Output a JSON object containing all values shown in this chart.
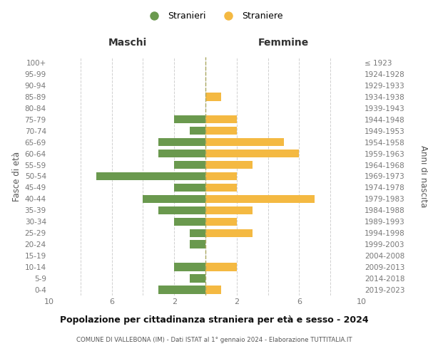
{
  "age_groups": [
    "0-4",
    "5-9",
    "10-14",
    "15-19",
    "20-24",
    "25-29",
    "30-34",
    "35-39",
    "40-44",
    "45-49",
    "50-54",
    "55-59",
    "60-64",
    "65-69",
    "70-74",
    "75-79",
    "80-84",
    "85-89",
    "90-94",
    "95-99",
    "100+"
  ],
  "birth_years": [
    "2019-2023",
    "2014-2018",
    "2009-2013",
    "2004-2008",
    "1999-2003",
    "1994-1998",
    "1989-1993",
    "1984-1988",
    "1979-1983",
    "1974-1978",
    "1969-1973",
    "1964-1968",
    "1959-1963",
    "1954-1958",
    "1949-1953",
    "1944-1948",
    "1939-1943",
    "1934-1938",
    "1929-1933",
    "1924-1928",
    "≤ 1923"
  ],
  "maschi": [
    3,
    1,
    2,
    0,
    1,
    1,
    2,
    3,
    4,
    2,
    7,
    2,
    3,
    3,
    1,
    2,
    0,
    0,
    0,
    0,
    0
  ],
  "femmine": [
    1,
    0,
    2,
    0,
    0,
    3,
    2,
    3,
    7,
    2,
    2,
    3,
    6,
    5,
    2,
    2,
    0,
    1,
    0,
    0,
    0
  ],
  "maschi_color": "#6a994e",
  "femmine_color": "#f4b942",
  "title": "Popolazione per cittadinanza straniera per età e sesso - 2024",
  "subtitle": "COMUNE DI VALLEBONA (IM) - Dati ISTAT al 1° gennaio 2024 - Elaborazione TUTTITALIA.IT",
  "xlabel_left": "Maschi",
  "xlabel_right": "Femmine",
  "ylabel": "Fasce di età",
  "ylabel_right": "Anni di nascita",
  "legend_maschi": "Stranieri",
  "legend_femmine": "Straniere",
  "xlim": 10,
  "background_color": "#ffffff",
  "grid_color": "#d0d0d0"
}
